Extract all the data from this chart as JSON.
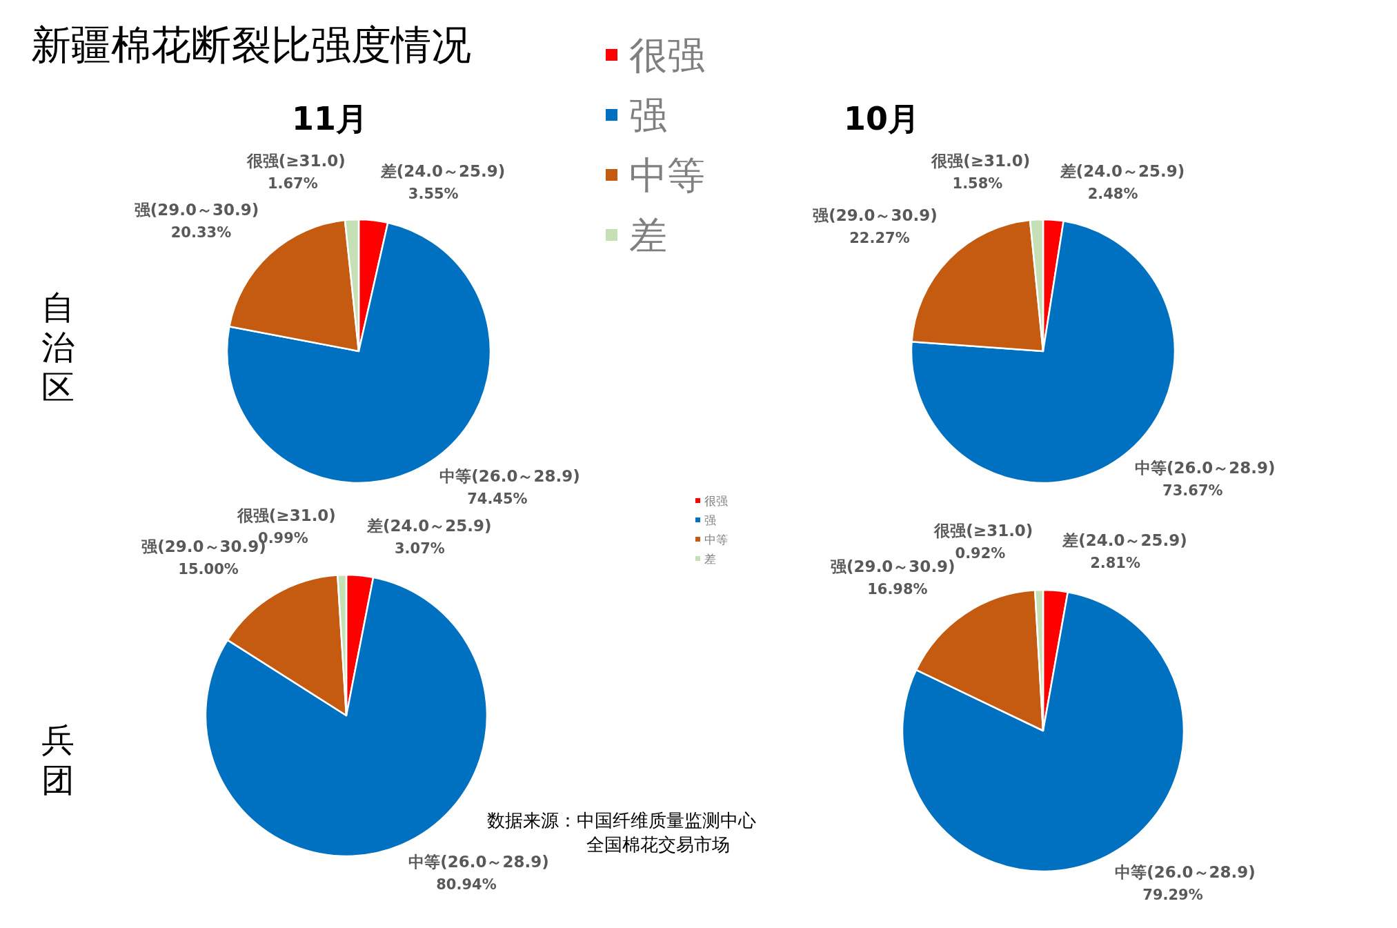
{
  "chart_data": [
    {
      "type": "other",
      "title": "新疆棉花断裂比强度情况",
      "categories": [
        "很强",
        "强",
        "中等",
        "差"
      ],
      "colors": [
        "#ff0000",
        "#0070c0",
        "#c55a11",
        "#c5e0b4"
      ],
      "annotations": [
        "数据来源：中国纤维质量监测中心",
        "全国棉花交易市场"
      ]
    },
    {
      "type": "pie",
      "title": "11月",
      "ylabel": "自治区",
      "categories": [
        "差(24.0～25.9)",
        "中等(26.0～28.9)",
        "强(29.0～30.9)",
        "很强(≥31.0)"
      ],
      "values": [
        3.55,
        74.45,
        20.33,
        1.67
      ],
      "value_labels": [
        "3.55%",
        "74.45%",
        "20.33%",
        "1.67%"
      ],
      "colors": [
        "#ff0000",
        "#0070c0",
        "#c55a11",
        "#c5e0b4"
      ]
    },
    {
      "type": "pie",
      "title": "10月",
      "categories": [
        "差(24.0～25.9)",
        "中等(26.0～28.9)",
        "强(29.0～30.9)",
        "很强(≥31.0)"
      ],
      "values": [
        2.48,
        73.67,
        22.27,
        1.58
      ],
      "value_labels": [
        "2.48%",
        "73.67%",
        "22.27%",
        "1.58%"
      ],
      "colors": [
        "#ff0000",
        "#0070c0",
        "#c55a11",
        "#c5e0b4"
      ]
    },
    {
      "type": "pie",
      "ylabel": "兵团",
      "categories": [
        "差(24.0～25.9)",
        "中等(26.0～28.9)",
        "强(29.0～30.9)",
        "很强(≥31.0)"
      ],
      "values": [
        3.07,
        80.94,
        15.0,
        0.99
      ],
      "value_labels": [
        "3.07%",
        "80.94%",
        "15.00%",
        "0.99%"
      ],
      "colors": [
        "#ff0000",
        "#0070c0",
        "#c55a11",
        "#c5e0b4"
      ]
    },
    {
      "type": "pie",
      "categories": [
        "差(24.0～25.9)",
        "中等(26.0～28.9)",
        "强(29.0～30.9)",
        "很强(≥31.0)"
      ],
      "values": [
        2.81,
        79.29,
        16.98,
        0.92
      ],
      "value_labels": [
        "2.81%",
        "79.29%",
        "16.98%",
        "0.92%"
      ],
      "colors": [
        "#ff0000",
        "#0070c0",
        "#c55a11",
        "#c5e0b4"
      ]
    }
  ]
}
